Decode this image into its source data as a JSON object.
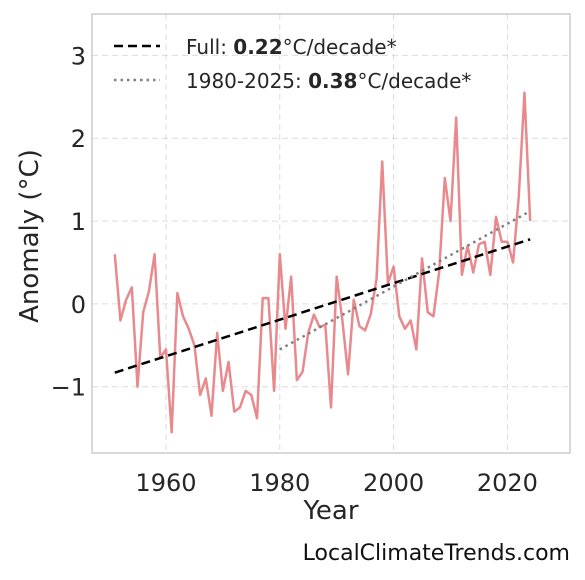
{
  "chart_data": {
    "type": "line",
    "xlabel": "Year",
    "ylabel": "Anomaly (°C)",
    "xlim": [
      1947,
      2031
    ],
    "ylim": [
      -1.8,
      3.5
    ],
    "xticks": [
      "1960",
      "1980",
      "2000",
      "2020"
    ],
    "xtick_values": [
      1960,
      1980,
      2000,
      2020
    ],
    "yticks": [
      "−1",
      "0",
      "1",
      "2",
      "3"
    ],
    "ytick_values": [
      -1,
      0,
      1,
      2,
      3
    ],
    "grid": true,
    "legend_position": "top-left",
    "series": [
      {
        "color": "#e88a8d",
        "style": "solid",
        "x": [
          1951,
          1952,
          1953,
          1954,
          1955,
          1956,
          1957,
          1958,
          1959,
          1960,
          1961,
          1962,
          1963,
          1964,
          1965,
          1966,
          1967,
          1968,
          1969,
          1970,
          1971,
          1972,
          1973,
          1974,
          1975,
          1976,
          1977,
          1978,
          1979,
          1980,
          1981,
          1982,
          1983,
          1984,
          1985,
          1986,
          1987,
          1988,
          1989,
          1990,
          1991,
          1992,
          1993,
          1994,
          1995,
          1996,
          1997,
          1998,
          1999,
          2000,
          2001,
          2002,
          2003,
          2004,
          2005,
          2006,
          2007,
          2008,
          2009,
          2010,
          2011,
          2012,
          2013,
          2014,
          2015,
          2016,
          2017,
          2018,
          2019,
          2020,
          2021,
          2022,
          2023,
          2024
        ],
        "y": [
          0.6,
          -0.2,
          0.05,
          0.2,
          -1.0,
          -0.1,
          0.15,
          0.6,
          -0.65,
          -0.55,
          -1.55,
          0.13,
          -0.15,
          -0.3,
          -0.5,
          -1.1,
          -0.9,
          -1.35,
          -0.35,
          -1.05,
          -0.7,
          -1.3,
          -1.25,
          -1.05,
          -1.1,
          -1.38,
          0.07,
          0.07,
          -1.05,
          0.6,
          -0.3,
          0.33,
          -0.92,
          -0.82,
          -0.35,
          -0.13,
          -0.28,
          -0.25,
          -1.25,
          0.33,
          -0.2,
          -0.85,
          0.05,
          -0.27,
          -0.32,
          -0.12,
          0.3,
          1.72,
          0.25,
          0.45,
          -0.15,
          -0.3,
          -0.2,
          -0.55,
          0.55,
          -0.1,
          -0.15,
          0.38,
          1.52,
          1.0,
          2.25,
          0.35,
          0.7,
          0.38,
          0.72,
          0.75,
          0.35,
          1.05,
          0.75,
          0.75,
          0.5,
          1.3,
          2.55,
          1.0
        ]
      },
      {
        "name": "Full",
        "color": "#000000",
        "style": "dashed",
        "x": [
          1951,
          2024
        ],
        "y": [
          -0.83,
          0.78
        ]
      },
      {
        "name": "1980-2025",
        "color": "#808080",
        "style": "dotted",
        "x": [
          1980,
          2024
        ],
        "y": [
          -0.55,
          1.12
        ]
      }
    ],
    "legend": [
      {
        "prefix": "Full: ",
        "value": "0.22",
        "suffix": "°C/decade*",
        "color": "#000000",
        "style": "dashed"
      },
      {
        "prefix": "1980-2025: ",
        "value": "0.38",
        "suffix": "°C/decade*",
        "color": "#808080",
        "style": "dotted"
      }
    ]
  },
  "footer": {
    "source": "LocalClimateTrends.com"
  }
}
